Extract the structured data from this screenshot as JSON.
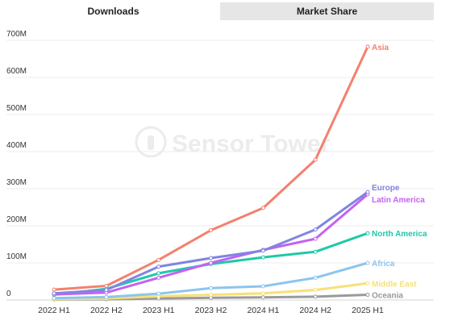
{
  "tabs": [
    {
      "label": "Downloads",
      "active": true
    },
    {
      "label": "Market Share",
      "active": false
    }
  ],
  "watermark": "Sensor Tower",
  "chart_data": {
    "type": "line",
    "title": "",
    "xlabel": "",
    "ylabel": "",
    "ylim": [
      0,
      700
    ],
    "y_ticks": [
      {
        "value": 0,
        "label": "0"
      },
      {
        "value": 100,
        "label": "100M"
      },
      {
        "value": 200,
        "label": "200M"
      },
      {
        "value": 300,
        "label": "300M"
      },
      {
        "value": 400,
        "label": "400M"
      },
      {
        "value": 500,
        "label": "500M"
      },
      {
        "value": 600,
        "label": "600M"
      },
      {
        "value": 700,
        "label": "700M"
      }
    ],
    "grid": true,
    "legend_placement": "inline-right",
    "categories": [
      "2022 H1",
      "2022 H2",
      "2023 H1",
      "2023 H2",
      "2024 H1",
      "2024 H2",
      "2025 H1"
    ],
    "series": [
      {
        "name": "Asia",
        "color": "#f4806e",
        "values": [
          28,
          38,
          108,
          188,
          248,
          378,
          683
        ]
      },
      {
        "name": "Europe",
        "color": "#8085e0",
        "values": [
          18,
          27,
          90,
          113,
          133,
          190,
          291
        ]
      },
      {
        "name": "Latin America",
        "color": "#c462f2",
        "values": [
          15,
          20,
          60,
          100,
          135,
          165,
          285
        ]
      },
      {
        "name": "North America",
        "color": "#1ec9a8",
        "values": [
          14,
          30,
          72,
          97,
          115,
          130,
          180
        ]
      },
      {
        "name": "Africa",
        "color": "#8cc5ee",
        "values": [
          5,
          8,
          17,
          32,
          37,
          60,
          100
        ]
      },
      {
        "name": "Middle East",
        "color": "#f9e077",
        "values": [
          2,
          4,
          10,
          14,
          18,
          27,
          45
        ]
      },
      {
        "name": "Oceania",
        "color": "#9a9a9a",
        "values": [
          1,
          2,
          4,
          6,
          7,
          9,
          14
        ]
      }
    ],
    "label_offsets": {
      "Asia": 0,
      "Europe": -6,
      "Latin America": 6,
      "North America": 0,
      "Africa": 0,
      "Middle East": 0,
      "Oceania": 0
    }
  }
}
